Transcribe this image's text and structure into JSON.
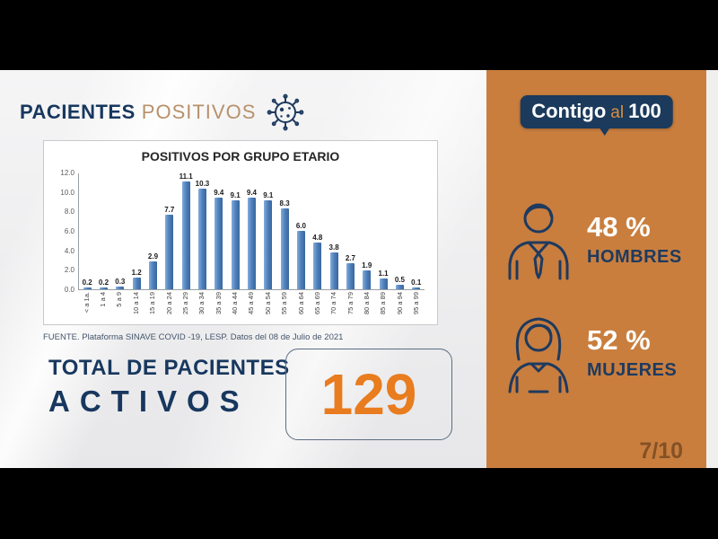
{
  "header": {
    "title_primary": "PACIENTES",
    "title_secondary": "POSITIVOS",
    "icon": "virus-icon"
  },
  "chart_data": {
    "type": "bar",
    "title": "POSITIVOS POR GRUPO ETARIO",
    "categories": [
      "< a 1a.",
      "1 a 4",
      "5 a 9",
      "10 a 14",
      "15 a 19",
      "20 a 24",
      "25 a 29",
      "30 a 34",
      "35 a 39",
      "40 a 44",
      "45 a 49",
      "50 a 54",
      "55 a 59",
      "60 a 64",
      "65 a 69",
      "70 a 74",
      "75 a 79",
      "80 a 84",
      "85 a 89",
      "90 a 94",
      "95 a 99"
    ],
    "values": [
      0.2,
      0.2,
      0.3,
      1.2,
      2.9,
      7.7,
      11.1,
      10.3,
      9.4,
      9.1,
      9.4,
      9.1,
      8.3,
      6.0,
      4.8,
      3.8,
      2.7,
      1.9,
      1.1,
      0.5,
      0.1
    ],
    "xlabel": "",
    "ylabel": "",
    "ylim": [
      0,
      12
    ],
    "yticks": [
      "0.0",
      "2.0",
      "4.0",
      "6.0",
      "8.0",
      "10.0",
      "12.0"
    ],
    "grid": false,
    "legend": false,
    "bar_color": "#4f81bd",
    "source": "FUENTE. Plataforma SINAVE COVID -19, LESP. Datos del 08 de Julio de 2021"
  },
  "total": {
    "label_line1": "TOTAL DE PACIENTES",
    "label_line2": "ACTIVOS",
    "value": "129"
  },
  "sidebar": {
    "logo": {
      "part1": "Contigo",
      "part2": "al",
      "part3": "100"
    },
    "stats": [
      {
        "icon": "man-icon",
        "percent": "48 %",
        "label": "HOMBRES"
      },
      {
        "icon": "woman-icon",
        "percent": "52 %",
        "label": "MUJERES"
      }
    ],
    "page_indicator": "7/10"
  },
  "colors": {
    "navy": "#17375e",
    "tan_text": "#b8916b",
    "accent_orange": "#e87c1e",
    "panel_orange": "#c97e3e",
    "bar_blue": "#4f81bd",
    "logo_navy": "#1b3a5c"
  }
}
